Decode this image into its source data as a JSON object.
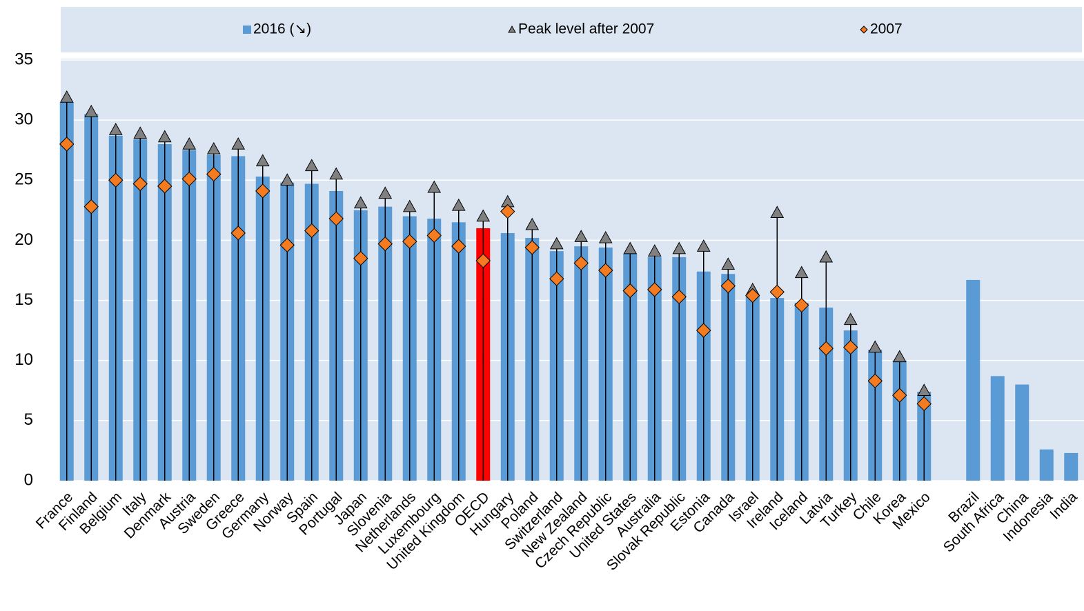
{
  "chart_data": {
    "type": "bar",
    "categories": [
      "France",
      "Finland",
      "Belgium",
      "Italy",
      "Denmark",
      "Austria",
      "Sweden",
      "Greece",
      "Germany",
      "Norway",
      "Spain",
      "Portugal",
      "Japan",
      "Slovenia",
      "Netherlands",
      "Luxembourg",
      "United Kingdom",
      "OECD",
      "Hungary",
      "Poland",
      "Switzerland",
      "New Zealand",
      "Czech Republic",
      "United States",
      "Australia",
      "Slovak Republic",
      "Estonia",
      "Canada",
      "Israel",
      "Ireland",
      "Iceland",
      "Latvia",
      "Turkey",
      "Chile",
      "Korea",
      "Mexico",
      null,
      "Brazil",
      "South Africa",
      "China",
      "Indonesia",
      "India"
    ],
    "series": [
      {
        "name": "2016 (↘)",
        "color": "#5b9bd5",
        "marker": "bar",
        "values": [
          31.5,
          30.5,
          28.7,
          28.4,
          28.0,
          27.5,
          27.1,
          27.0,
          25.3,
          24.8,
          24.7,
          24.1,
          22.5,
          22.8,
          22.0,
          21.8,
          21.5,
          21.0,
          20.6,
          20.2,
          19.1,
          19.5,
          19.4,
          18.9,
          18.6,
          18.6,
          17.4,
          17.2,
          15.5,
          15.2,
          14.8,
          14.4,
          12.5,
          10.9,
          10.0,
          7.4,
          null,
          16.7,
          8.7,
          8.0,
          2.6,
          2.3
        ]
      },
      {
        "name": "Peak level after 2007",
        "color": "#808080",
        "marker": "triangle",
        "values": [
          31.9,
          30.7,
          29.2,
          28.9,
          28.6,
          28.0,
          27.6,
          28.0,
          26.6,
          25.0,
          26.2,
          25.5,
          23.1,
          23.9,
          22.8,
          24.4,
          22.9,
          22.0,
          23.2,
          21.3,
          19.7,
          20.3,
          20.2,
          19.3,
          19.1,
          19.3,
          19.5,
          18.0,
          15.9,
          22.3,
          17.3,
          18.6,
          13.4,
          11.1,
          10.3,
          7.5,
          null,
          null,
          null,
          null,
          null,
          null
        ]
      },
      {
        "name": "2007",
        "color": "#f47b20",
        "marker": "diamond",
        "values": [
          28.0,
          22.8,
          25.0,
          24.7,
          24.5,
          25.1,
          25.5,
          20.6,
          24.1,
          19.6,
          20.8,
          21.8,
          18.5,
          19.7,
          19.9,
          20.4,
          19.5,
          18.3,
          22.4,
          19.4,
          16.8,
          18.1,
          17.5,
          15.8,
          15.9,
          15.3,
          12.5,
          16.2,
          15.4,
          15.7,
          14.6,
          11.0,
          11.1,
          8.3,
          7.1,
          6.4,
          null,
          null,
          null,
          null,
          null,
          null
        ]
      }
    ],
    "highlight_index": 17,
    "highlight_color": "#ff0000",
    "ylim": [
      0,
      35
    ],
    "yticks": [
      0,
      5,
      10,
      15,
      20,
      25,
      30,
      35
    ],
    "grid": true
  }
}
